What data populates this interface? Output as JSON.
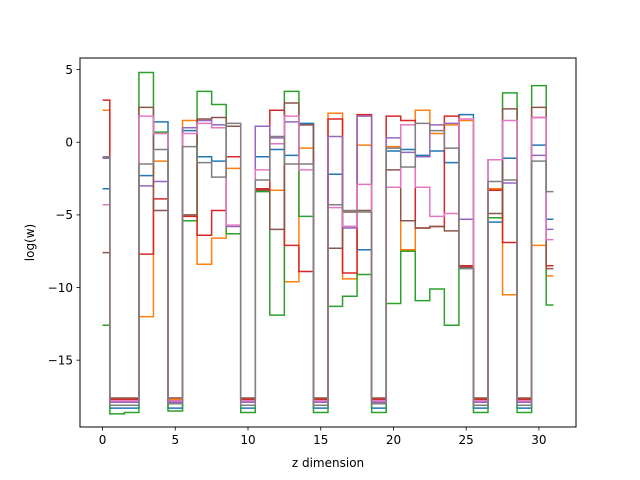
{
  "chart_data": {
    "type": "line",
    "drawstyle": "steps-mid",
    "title": "",
    "xlabel": "z dimension",
    "ylabel": "log(w)",
    "xlim": [
      -1.55,
      32.55
    ],
    "ylim": [
      -19.6,
      5.8
    ],
    "xticks": [
      0,
      5,
      10,
      15,
      20,
      25,
      30
    ],
    "yticks": [
      5,
      0,
      -5,
      -10,
      -15
    ],
    "grid": false,
    "legend": "none",
    "x": [
      0,
      1,
      2,
      3,
      4,
      5,
      6,
      7,
      8,
      9,
      10,
      11,
      12,
      13,
      14,
      15,
      16,
      17,
      18,
      19,
      20,
      21,
      22,
      23,
      24,
      25,
      26,
      27,
      28,
      29,
      30,
      31
    ],
    "series": [
      {
        "color": "#1f77b4",
        "values": [
          -3.2,
          -18.3,
          -18.3,
          -2.3,
          1.4,
          -18.3,
          0.8,
          -1.0,
          -1.3,
          -1.0,
          -18.3,
          -1.0,
          -0.5,
          -0.9,
          1.3,
          -18.3,
          -2.2,
          -5.8,
          -7.4,
          -18.3,
          -0.6,
          -0.5,
          -0.9,
          -0.6,
          -1.4,
          1.9,
          -18.3,
          -5.5,
          -1.1,
          -18.3,
          -0.2,
          -5.3
        ]
      },
      {
        "color": "#ff7f0e",
        "values": [
          2.2,
          -17.7,
          -17.7,
          -12.0,
          -1.3,
          -17.7,
          1.5,
          -8.4,
          -6.6,
          -1.8,
          -17.7,
          -3.2,
          -3.3,
          -9.6,
          -0.4,
          -17.7,
          2.0,
          -9.4,
          -0.2,
          -17.7,
          -0.3,
          -7.4,
          2.2,
          0.6,
          1.2,
          1.5,
          -17.7,
          -3.2,
          -10.5,
          -17.7,
          -7.1,
          -9.2
        ]
      },
      {
        "color": "#2ca02c",
        "values": [
          -12.6,
          -18.7,
          -18.6,
          4.8,
          0.7,
          -18.5,
          -5.4,
          3.5,
          2.6,
          -6.3,
          -18.6,
          -3.4,
          -11.9,
          3.5,
          -5.1,
          -18.6,
          -11.3,
          -10.6,
          -9.1,
          -18.6,
          -11.1,
          -7.5,
          -10.9,
          -10.1,
          -12.6,
          -8.6,
          -18.6,
          -5.2,
          3.4,
          -18.6,
          3.9,
          -11.2
        ]
      },
      {
        "color": "#d62728",
        "values": [
          2.9,
          -17.7,
          -17.7,
          -7.7,
          -3.9,
          -17.8,
          -5.1,
          -6.4,
          -4.7,
          -1.0,
          -17.7,
          -3.2,
          2.2,
          -7.1,
          -8.9,
          -17.7,
          1.6,
          -9.0,
          1.9,
          -17.7,
          1.8,
          1.5,
          -5.9,
          -5.8,
          1.8,
          -8.5,
          -17.7,
          -3.3,
          -6.9,
          -17.7,
          1.7,
          -8.5
        ]
      },
      {
        "color": "#9467bd",
        "values": [
          -1.1,
          -17.9,
          -17.9,
          -3.0,
          -2.7,
          -17.9,
          1.0,
          1.5,
          1.2,
          -5.8,
          -17.9,
          1.1,
          0.3,
          1.4,
          1.2,
          -17.9,
          0.4,
          -5.9,
          1.8,
          -17.9,
          0.3,
          -0.7,
          -1.0,
          1.2,
          1.3,
          -5.3,
          -17.9,
          -1.2,
          -2.8,
          -17.9,
          -0.9,
          -6.0
        ]
      },
      {
        "color": "#8c564b",
        "values": [
          -7.6,
          -17.6,
          -17.6,
          2.4,
          -4.7,
          -17.6,
          -5.0,
          1.6,
          1.7,
          1.1,
          -17.6,
          -3.3,
          -6.0,
          2.7,
          1.2,
          -17.6,
          -7.3,
          -4.8,
          -4.7,
          -17.6,
          -1.9,
          -5.4,
          -5.9,
          -5.8,
          -6.1,
          -8.6,
          -17.6,
          -4.9,
          2.3,
          -17.6,
          2.4,
          -8.7
        ]
      },
      {
        "color": "#e377c2",
        "values": [
          -4.3,
          -17.8,
          -17.8,
          1.8,
          0.6,
          -17.8,
          0.6,
          1.3,
          1.0,
          -5.7,
          -17.8,
          -1.9,
          -0.1,
          1.8,
          -1.9,
          -17.8,
          -4.5,
          -5.8,
          -2.9,
          -17.8,
          -3.1,
          1.2,
          -3.1,
          -5.1,
          -4.9,
          1.6,
          -17.8,
          -1.2,
          1.5,
          -17.8,
          1.7,
          -6.7
        ]
      },
      {
        "color": "#7f7f7f",
        "values": [
          -1.0,
          -18.1,
          -18.1,
          -1.5,
          -0.5,
          -18.0,
          -0.3,
          -1.4,
          -2.4,
          1.3,
          -18.1,
          -2.6,
          0.4,
          -1.5,
          -1.5,
          -18.1,
          -4.3,
          -4.7,
          -4.8,
          -18.0,
          -0.4,
          -1.7,
          1.3,
          0.8,
          -0.4,
          -8.7,
          -18.1,
          -2.7,
          -2.6,
          -18.1,
          -1.3,
          -3.4
        ]
      }
    ]
  }
}
